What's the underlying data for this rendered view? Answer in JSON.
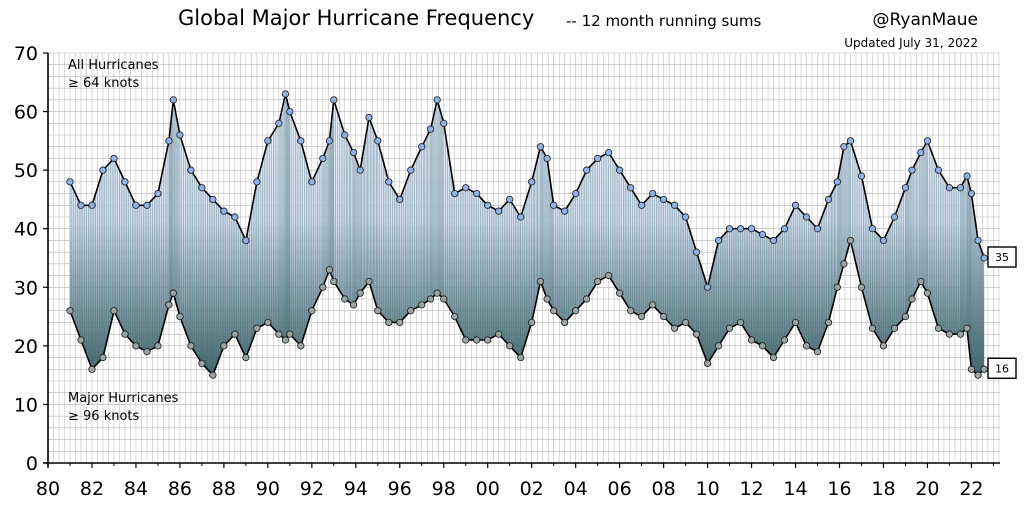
{
  "header": {
    "title": "Global Major Hurricane Frequency",
    "subtitle": "-- 12 month running sums",
    "handle": "@RyanMaue",
    "updated": "Updated July 31, 2022"
  },
  "annotations": {
    "all_label_line1": "All Hurricanes",
    "all_label_line2": "≥ 64 knots",
    "major_label_line1": "Major Hurricanes",
    "major_label_line2": "≥ 96 knots"
  },
  "colors": {
    "all_marker": "#8fb3e8",
    "major_marker": "#9aa6a4",
    "line": "#000000",
    "grid": "#b5b5b5"
  },
  "chart_data": {
    "type": "line",
    "title": "Global Major Hurricane Frequency",
    "subtitle": "12 month running sums",
    "xlim": [
      80,
      123.3
    ],
    "ylim": [
      0,
      70
    ],
    "x_ticks": [
      80,
      82,
      84,
      86,
      88,
      90,
      92,
      94,
      96,
      98,
      100,
      102,
      104,
      106,
      108,
      110,
      112,
      114,
      116,
      118,
      120,
      122
    ],
    "x_tick_labels": [
      "80",
      "82",
      "84",
      "86",
      "88",
      "90",
      "92",
      "94",
      "96",
      "98",
      "00",
      "02",
      "04",
      "06",
      "08",
      "10",
      "12",
      "14",
      "16",
      "18",
      "20",
      "22"
    ],
    "y_ticks": [
      0,
      10,
      20,
      30,
      40,
      50,
      60,
      70
    ],
    "y_tick_labels": [
      "0",
      "10",
      "20",
      "30",
      "40",
      "50",
      "60",
      "70"
    ],
    "grid": true,
    "end_labels": [
      "35",
      "16"
    ],
    "x_unit": "decimal year (80 = 1980)",
    "series": [
      {
        "name": "All Hurricanes ≥ 64 knots",
        "x": [
          81.0,
          81.5,
          82.0,
          82.5,
          83.0,
          83.5,
          84.0,
          84.5,
          85.0,
          85.5,
          85.7,
          86.0,
          86.5,
          87.0,
          87.5,
          88.0,
          88.5,
          89.0,
          89.5,
          90.0,
          90.5,
          90.8,
          91.0,
          91.5,
          92.0,
          92.5,
          92.8,
          93.0,
          93.5,
          93.9,
          94.2,
          94.6,
          95.0,
          95.5,
          96.0,
          96.5,
          97.0,
          97.4,
          97.7,
          98.0,
          98.5,
          99.0,
          99.5,
          100.0,
          100.5,
          101.0,
          101.5,
          102.0,
          102.4,
          102.7,
          103.0,
          103.5,
          104.0,
          104.5,
          105.0,
          105.5,
          106.0,
          106.5,
          107.0,
          107.5,
          108.0,
          108.5,
          109.0,
          109.5,
          110.0,
          110.5,
          111.0,
          111.5,
          112.0,
          112.5,
          113.0,
          113.5,
          114.0,
          114.5,
          115.0,
          115.5,
          115.9,
          116.2,
          116.5,
          117.0,
          117.5,
          118.0,
          118.5,
          119.0,
          119.3,
          119.7,
          120.0,
          120.5,
          121.0,
          121.5,
          121.8,
          122.0,
          122.3,
          122.58
        ],
        "values": [
          48,
          44,
          44,
          50,
          52,
          48,
          44,
          44,
          46,
          55,
          62,
          56,
          50,
          47,
          45,
          43,
          42,
          38,
          48,
          55,
          58,
          63,
          60,
          55,
          48,
          52,
          55,
          62,
          56,
          53,
          50,
          59,
          55,
          48,
          45,
          50,
          54,
          57,
          62,
          58,
          46,
          47,
          46,
          44,
          43,
          45,
          42,
          48,
          54,
          52,
          44,
          43,
          46,
          50,
          52,
          53,
          50,
          47,
          44,
          46,
          45,
          44,
          42,
          36,
          30,
          38,
          40,
          40,
          40,
          39,
          38,
          40,
          44,
          42,
          40,
          45,
          48,
          54,
          55,
          49,
          40,
          38,
          42,
          47,
          50,
          53,
          55,
          50,
          47,
          47,
          49,
          46,
          38,
          35
        ]
      },
      {
        "name": "Major Hurricanes ≥ 96 knots",
        "x": [
          81.0,
          81.5,
          82.0,
          82.5,
          83.0,
          83.5,
          84.0,
          84.5,
          85.0,
          85.5,
          85.7,
          86.0,
          86.5,
          87.0,
          87.5,
          88.0,
          88.5,
          89.0,
          89.5,
          90.0,
          90.5,
          90.8,
          91.0,
          91.5,
          92.0,
          92.5,
          92.8,
          93.0,
          93.5,
          93.9,
          94.2,
          94.6,
          95.0,
          95.5,
          96.0,
          96.5,
          97.0,
          97.4,
          97.7,
          98.0,
          98.5,
          99.0,
          99.5,
          100.0,
          100.5,
          101.0,
          101.5,
          102.0,
          102.4,
          102.7,
          103.0,
          103.5,
          104.0,
          104.5,
          105.0,
          105.5,
          106.0,
          106.5,
          107.0,
          107.5,
          108.0,
          108.5,
          109.0,
          109.5,
          110.0,
          110.5,
          111.0,
          111.5,
          112.0,
          112.5,
          113.0,
          113.5,
          114.0,
          114.5,
          115.0,
          115.5,
          115.9,
          116.2,
          116.5,
          117.0,
          117.5,
          118.0,
          118.5,
          119.0,
          119.3,
          119.7,
          120.0,
          120.5,
          121.0,
          121.5,
          121.8,
          122.0,
          122.3,
          122.58
        ],
        "values": [
          26,
          21,
          16,
          18,
          26,
          22,
          20,
          19,
          20,
          27,
          29,
          25,
          20,
          17,
          15,
          20,
          22,
          18,
          23,
          24,
          22,
          21,
          22,
          20,
          26,
          30,
          33,
          31,
          28,
          27,
          29,
          31,
          26,
          24,
          24,
          26,
          27,
          28,
          29,
          28,
          25,
          21,
          21,
          21,
          22,
          20,
          18,
          24,
          31,
          28,
          26,
          24,
          26,
          28,
          31,
          32,
          29,
          26,
          25,
          27,
          25,
          23,
          24,
          22,
          17,
          20,
          23,
          24,
          21,
          20,
          18,
          21,
          24,
          20,
          19,
          24,
          30,
          34,
          38,
          30,
          23,
          20,
          23,
          25,
          28,
          31,
          29,
          23,
          22,
          22,
          23,
          16,
          15,
          16
        ]
      }
    ]
  }
}
